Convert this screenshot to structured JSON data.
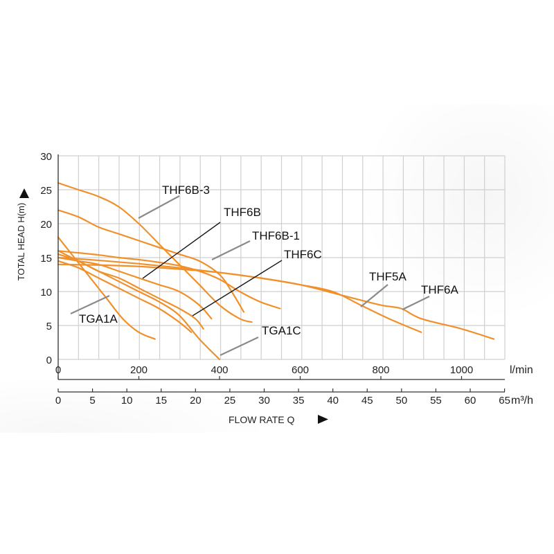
{
  "chart_data": {
    "type": "line",
    "ylabel": "TOTAL HEAD H(m)",
    "xlabel": "FLOW RATE Q",
    "x_unit_primary": "l/min",
    "x_unit_secondary": "m³/h",
    "ylim": [
      0,
      30
    ],
    "xlim": [
      0,
      1090
    ],
    "grid": true,
    "y_ticks": [
      "0",
      "5",
      "10",
      "15",
      "20",
      "25",
      "30"
    ],
    "x_ticks_primary": [
      "0",
      "200",
      "400",
      "600",
      "800",
      "1000"
    ],
    "x_ticks_secondary": [
      "0",
      "5",
      "10",
      "15",
      "20",
      "25",
      "30",
      "35",
      "40",
      "45",
      "50",
      "55",
      "60",
      "65"
    ],
    "colors": {
      "curve": "#f0902a",
      "grid": "#cfcfcf",
      "axis": "#333333",
      "leader": "#8a8a8a",
      "leader_dark": "#1a1a1a"
    },
    "series": [
      {
        "name": "THF6B-3",
        "x": [
          0,
          50,
          100,
          150,
          200,
          250,
          300,
          350,
          400,
          450,
          480
        ],
        "y": [
          26,
          25,
          24,
          22.5,
          20,
          17,
          14,
          11,
          8,
          6,
          5.5
        ]
      },
      {
        "name": "THF6B",
        "x": [
          0,
          50,
          100,
          150,
          200,
          250,
          300,
          350,
          400,
          430,
          460
        ],
        "y": [
          22,
          21,
          19.5,
          18.5,
          17.5,
          16.5,
          15.5,
          14.5,
          12.5,
          10,
          7
        ]
      },
      {
        "name": "THF6B-1",
        "x": [
          0,
          50,
          100,
          150,
          200,
          250,
          300,
          350,
          400,
          450,
          500,
          550
        ],
        "y": [
          16,
          15.7,
          15.4,
          15,
          14.7,
          14.3,
          13.8,
          13,
          11.8,
          10,
          8.5,
          7.5
        ]
      },
      {
        "name": "THF6C",
        "x": [
          0,
          50,
          100,
          150,
          200,
          250,
          300,
          350,
          380
        ],
        "y": [
          15,
          14.5,
          14,
          13,
          12,
          11,
          10,
          8,
          6
        ]
      },
      {
        "name": "TGA1C",
        "x": [
          0,
          50,
          100,
          150,
          200,
          250,
          300,
          350,
          400
        ],
        "y": [
          16,
          14.5,
          13,
          11.5,
          10,
          8.5,
          6.5,
          3,
          0
        ]
      },
      {
        "name": "TGA1A",
        "x": [
          0,
          40,
          80,
          120,
          160,
          200,
          240
        ],
        "y": [
          18,
          15,
          12,
          9,
          6,
          4,
          3
        ]
      },
      {
        "name": "THF5A",
        "x": [
          0,
          100,
          200,
          300,
          400,
          500,
          600,
          680,
          750,
          820,
          900
        ],
        "y": [
          14,
          13.9,
          13.7,
          13.3,
          12.8,
          12,
          11,
          10,
          8,
          6,
          4
        ]
      },
      {
        "name": "THF6A",
        "x": [
          0,
          100,
          200,
          300,
          400,
          500,
          600,
          700,
          800,
          850,
          900,
          1000,
          1080
        ],
        "y": [
          15,
          14.6,
          14.1,
          13.5,
          12.8,
          12,
          11,
          9.5,
          8,
          7.5,
          6,
          4.5,
          3
        ]
      },
      {
        "name": "",
        "x": [
          0,
          50,
          100,
          150,
          200,
          250,
          300,
          330
        ],
        "y": [
          14.5,
          13.5,
          12,
          10.5,
          9,
          7.5,
          5.5,
          4
        ]
      },
      {
        "name": "",
        "x": [
          0,
          50,
          100,
          150,
          200,
          250,
          300,
          340,
          360
        ],
        "y": [
          15.5,
          14.5,
          13,
          12,
          10.5,
          9,
          7.5,
          6,
          4.5
        ]
      }
    ]
  }
}
